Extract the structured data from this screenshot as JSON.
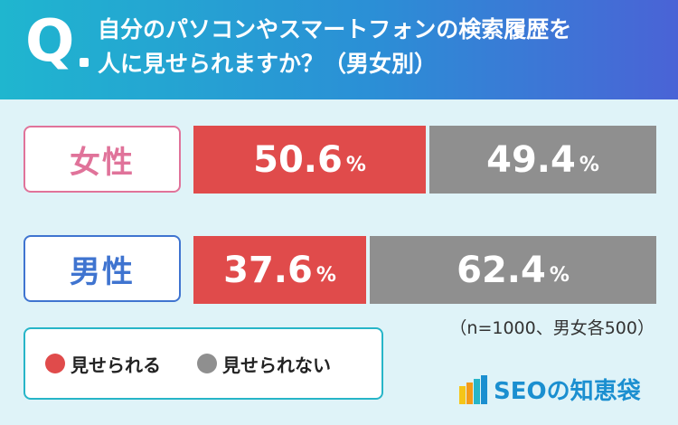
{
  "header": {
    "q_mark": "Q",
    "title_line1": "自分のパソコンやスマートフォンの検索履歴を",
    "title_line2": "人に見せられますか？（男女別）"
  },
  "chart_data": {
    "type": "bar",
    "stacked": true,
    "orientation": "horizontal",
    "categories": [
      "女性",
      "男性"
    ],
    "series": [
      {
        "name": "見せられる",
        "color": "#e04b4b",
        "values": [
          50.6,
          37.6
        ]
      },
      {
        "name": "見せられない",
        "color": "#8f8f8f",
        "values": [
          49.4,
          62.4
        ]
      }
    ],
    "unit": "%",
    "xlim": [
      0,
      100
    ],
    "legend_position": "bottom-left",
    "annotation": "（n=1000、男女各500）"
  },
  "labels": {
    "female": "女性",
    "male": "男性"
  },
  "legend": {
    "yes_label": "見せられる",
    "no_label": "見せられない"
  },
  "note": "（n=1000、男女各500）",
  "logo": {
    "text": "SEOの知恵袋"
  },
  "colors": {
    "header_start": "#1fb6cf",
    "header_end": "#4a63d6",
    "female_accent": "#e0739a",
    "male_accent": "#3f74d0",
    "yes": "#e04b4b",
    "no": "#8f8f8f",
    "background": "#dff3f8"
  }
}
